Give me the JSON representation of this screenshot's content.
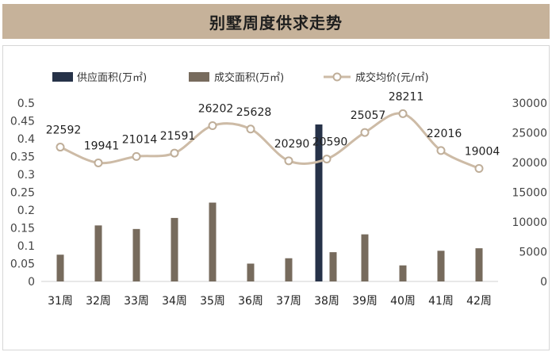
{
  "header": {
    "title": "别墅周度供求走势"
  },
  "chart_data": {
    "type": "bar+line",
    "title": "别墅周度供求走势",
    "categories": [
      "31周",
      "32周",
      "33周",
      "34周",
      "35周",
      "36周",
      "37周",
      "38周",
      "39周",
      "40周",
      "41周",
      "42周"
    ],
    "series": [
      {
        "name": "供应面积(万㎡)",
        "type": "bar",
        "axis": "left",
        "color": "#263248",
        "values": [
          0,
          0,
          0,
          0,
          0,
          0,
          0,
          0.44,
          0,
          0,
          0,
          0
        ]
      },
      {
        "name": "成交面积(万㎡)",
        "type": "bar",
        "axis": "left",
        "color": "#776b5d",
        "values": [
          0.075,
          0.157,
          0.147,
          0.178,
          0.221,
          0.05,
          0.065,
          0.082,
          0.132,
          0.045,
          0.086,
          0.093
        ]
      },
      {
        "name": "成交均价(元/㎡)",
        "type": "line",
        "axis": "right",
        "color": "#cdbba6",
        "values": [
          22592,
          19941,
          21014,
          21591,
          26202,
          25628,
          20290,
          20590,
          25057,
          28211,
          22016,
          19004
        ]
      }
    ],
    "ylim_left": [
      0,
      0.5
    ],
    "yticks_left": [
      "0",
      "0.05",
      "0.1",
      "0.15",
      "0.2",
      "0.25",
      "0.3",
      "0.35",
      "0.4",
      "0.45",
      "0.5"
    ],
    "ylim_right": [
      0,
      30000
    ],
    "yticks_right": [
      "0",
      "5000",
      "10000",
      "15000",
      "20000",
      "25000",
      "30000"
    ],
    "grid": false,
    "legend_position": "top"
  }
}
